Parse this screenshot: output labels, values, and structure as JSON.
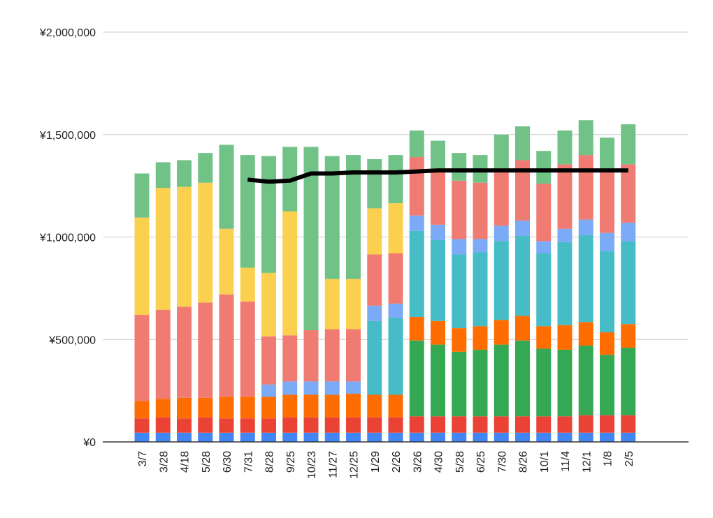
{
  "chart_data": {
    "type": "bar",
    "stacked": true,
    "categories": [
      "3/7",
      "3/28",
      "4/18",
      "5/28",
      "6/30",
      "7/31",
      "8/28",
      "9/25",
      "10/23",
      "11/27",
      "12/25",
      "1/29",
      "2/26",
      "3/26",
      "4/30",
      "5/28",
      "6/25",
      "7/30",
      "8/26",
      "10/1",
      "11/4",
      "12/1",
      "1/8",
      "2/5"
    ],
    "ylim": [
      0,
      2000000
    ],
    "yticks": [
      0,
      500000,
      1000000,
      1500000,
      2000000
    ],
    "ytick_labels": [
      "¥0",
      "¥500,000",
      "¥1,000,000",
      "¥1,500,000",
      "¥2,000,000"
    ],
    "grid": true,
    "legend": "none",
    "series": [
      {
        "color": "#4285f4",
        "values": [
          45000,
          45000,
          45000,
          45000,
          45000,
          45000,
          45000,
          45000,
          45000,
          45000,
          45000,
          45000,
          45000,
          45000,
          45000,
          45000,
          45000,
          45000,
          45000,
          45000,
          45000,
          45000,
          45000,
          45000
        ]
      },
      {
        "color": "#ea4335",
        "values": [
          70000,
          75000,
          70000,
          75000,
          70000,
          70000,
          70000,
          75000,
          75000,
          75000,
          75000,
          75000,
          75000,
          80000,
          80000,
          80000,
          80000,
          80000,
          80000,
          80000,
          80000,
          85000,
          85000,
          85000
        ]
      },
      {
        "color": "#34a853",
        "values": [
          0,
          0,
          0,
          0,
          0,
          0,
          0,
          0,
          0,
          0,
          0,
          0,
          0,
          370000,
          350000,
          315000,
          325000,
          350000,
          370000,
          330000,
          325000,
          340000,
          295000,
          330000
        ]
      },
      {
        "color": "#ff6d01",
        "values": [
          85000,
          90000,
          100000,
          95000,
          105000,
          105000,
          105000,
          110000,
          110000,
          110000,
          115000,
          110000,
          110000,
          115000,
          115000,
          115000,
          115000,
          120000,
          120000,
          110000,
          120000,
          115000,
          110000,
          115000
        ]
      },
      {
        "color": "#46bdc6",
        "values": [
          0,
          0,
          0,
          0,
          0,
          0,
          0,
          0,
          0,
          0,
          0,
          360000,
          375000,
          420000,
          395000,
          360000,
          360000,
          385000,
          390000,
          355000,
          405000,
          425000,
          395000,
          405000
        ]
      },
      {
        "color": "#7baaf7",
        "values": [
          0,
          0,
          0,
          0,
          0,
          0,
          60000,
          65000,
          65000,
          65000,
          60000,
          75000,
          70000,
          75000,
          75000,
          75000,
          65000,
          75000,
          75000,
          60000,
          65000,
          75000,
          90000,
          90000
        ]
      },
      {
        "color": "#f07b72",
        "values": [
          420000,
          435000,
          445000,
          465000,
          500000,
          465000,
          235000,
          225000,
          250000,
          255000,
          255000,
          250000,
          245000,
          285000,
          270000,
          285000,
          275000,
          265000,
          295000,
          280000,
          315000,
          315000,
          295000,
          285000
        ]
      },
      {
        "color": "#fcd04f",
        "values": [
          475000,
          595000,
          585000,
          585000,
          320000,
          165000,
          310000,
          605000,
          0,
          245000,
          245000,
          225000,
          245000,
          0,
          0,
          0,
          0,
          0,
          0,
          0,
          0,
          0,
          0,
          0
        ]
      },
      {
        "color": "#71c287",
        "values": [
          215000,
          125000,
          130000,
          145000,
          410000,
          550000,
          570000,
          315000,
          895000,
          600000,
          605000,
          240000,
          235000,
          130000,
          140000,
          135000,
          135000,
          180000,
          165000,
          160000,
          165000,
          170000,
          170000,
          195000
        ]
      }
    ],
    "line": {
      "color": "#000000",
      "start_index": 5,
      "values": [
        1280000,
        1270000,
        1275000,
        1310000,
        1310000,
        1315000,
        1315000,
        1315000,
        1320000,
        1325000,
        1325000,
        1325000,
        1325000,
        1325000,
        1325000,
        1325000,
        1325000,
        1325000,
        1325000
      ]
    }
  }
}
